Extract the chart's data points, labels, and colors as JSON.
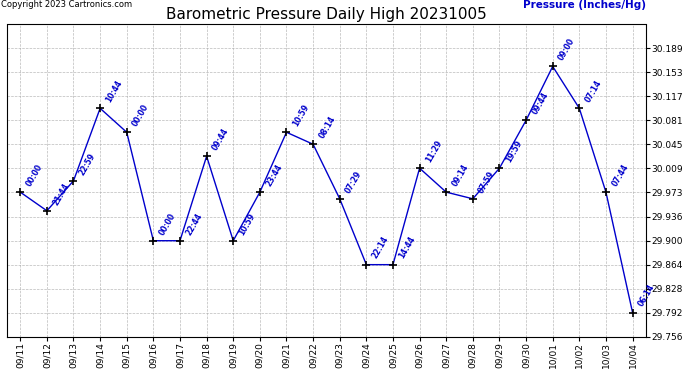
{
  "title": "Barometric Pressure Daily High 20231005",
  "copyright": "Copyright 2023 Cartronics.com",
  "ylabel": "Pressure (Inches/Hg)",
  "fig_background": "#ffffff",
  "plot_background": "#ffffff",
  "line_color": "#0000cc",
  "marker_color": "#000000",
  "text_color": "#0000cc",
  "title_color": "#000000",
  "grid_color": "#aaaaaa",
  "ylim_min": 29.756,
  "ylim_max": 30.225,
  "yticks": [
    29.756,
    29.792,
    29.828,
    29.864,
    29.9,
    29.936,
    29.973,
    30.009,
    30.045,
    30.081,
    30.117,
    30.153,
    30.189
  ],
  "data_points": [
    {
      "date": "09/11",
      "value": 29.973,
      "label": "00:00"
    },
    {
      "date": "09/12",
      "value": 29.945,
      "label": "21:44"
    },
    {
      "date": "09/13",
      "value": 29.99,
      "label": "22:59"
    },
    {
      "date": "09/14",
      "value": 30.099,
      "label": "10:44"
    },
    {
      "date": "09/15",
      "value": 30.063,
      "label": "00:00"
    },
    {
      "date": "09/16",
      "value": 29.9,
      "label": "00:00"
    },
    {
      "date": "09/17",
      "value": 29.9,
      "label": "22:44"
    },
    {
      "date": "09/18",
      "value": 30.027,
      "label": "09:44"
    },
    {
      "date": "09/19",
      "value": 29.9,
      "label": "10:59"
    },
    {
      "date": "09/20",
      "value": 29.973,
      "label": "23:44"
    },
    {
      "date": "09/21",
      "value": 30.063,
      "label": "10:59"
    },
    {
      "date": "09/22",
      "value": 30.045,
      "label": "08:14"
    },
    {
      "date": "09/23",
      "value": 29.963,
      "label": "07:29"
    },
    {
      "date": "09/24",
      "value": 29.864,
      "label": "22:14"
    },
    {
      "date": "09/25",
      "value": 29.864,
      "label": "14:44"
    },
    {
      "date": "09/26",
      "value": 30.009,
      "label": "11:29"
    },
    {
      "date": "09/27",
      "value": 29.973,
      "label": "09:14"
    },
    {
      "date": "09/28",
      "value": 29.963,
      "label": "07:59"
    },
    {
      "date": "09/29",
      "value": 30.009,
      "label": "19:59"
    },
    {
      "date": "09/30",
      "value": 30.081,
      "label": "09:44"
    },
    {
      "date": "10/01",
      "value": 30.162,
      "label": "09:00"
    },
    {
      "date": "10/02",
      "value": 30.099,
      "label": "07:14"
    },
    {
      "date": "10/03",
      "value": 29.973,
      "label": "07:44"
    },
    {
      "date": "10/04",
      "value": 29.792,
      "label": "06:14"
    }
  ]
}
